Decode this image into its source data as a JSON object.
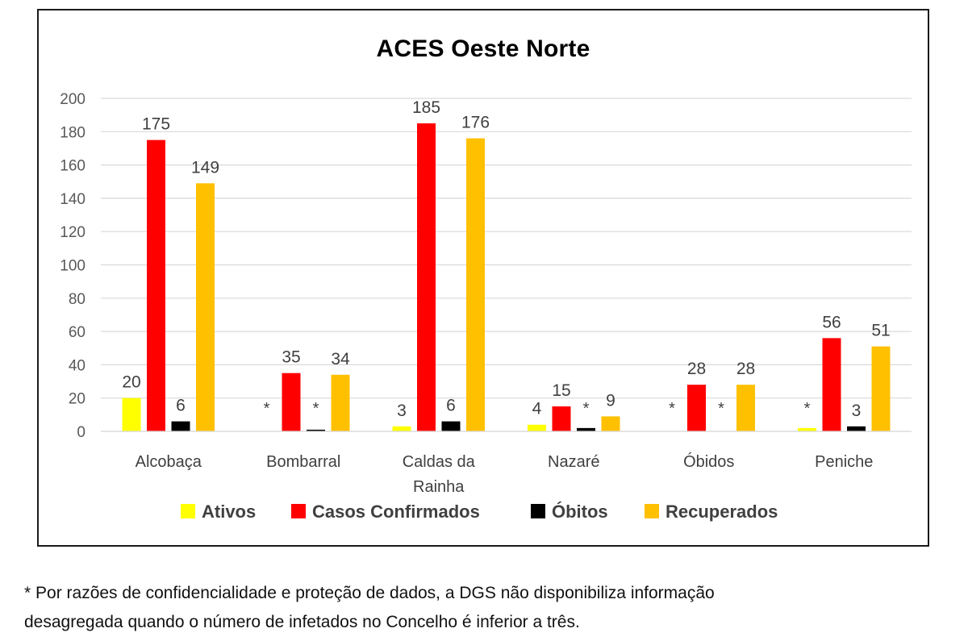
{
  "chart_data": {
    "type": "bar",
    "title": "ACES Oeste Norte",
    "xlabel": "",
    "ylabel": "",
    "ylim": [
      0,
      200
    ],
    "yticks": [
      0,
      20,
      40,
      60,
      80,
      100,
      120,
      140,
      160,
      180,
      200
    ],
    "grid": true,
    "legend_position": "bottom",
    "categories": [
      "Alcobaça",
      "Bombarral",
      "Caldas da Rainha",
      "Nazaré",
      "Óbidos",
      "Peniche"
    ],
    "series": [
      {
        "name": "Ativos",
        "color": "#ffff00",
        "values": [
          20,
          0,
          3,
          4,
          0,
          2
        ],
        "labels": [
          "20",
          "*",
          "3",
          "4",
          "*",
          "*"
        ]
      },
      {
        "name": "Casos Confirmados",
        "color": "#ff0000",
        "values": [
          175,
          35,
          185,
          15,
          28,
          56
        ],
        "labels": [
          "175",
          "35",
          "185",
          "15",
          "28",
          "56"
        ]
      },
      {
        "name": "Óbitos",
        "color": "#000000",
        "values": [
          6,
          1,
          6,
          2,
          0,
          3
        ],
        "labels": [
          "6",
          "*",
          "6",
          "*",
          "*",
          "3"
        ]
      },
      {
        "name": "Recuperados",
        "color": "#ffc000",
        "values": [
          149,
          34,
          176,
          9,
          28,
          51
        ],
        "labels": [
          "149",
          "34",
          "176",
          "9",
          "28",
          "51"
        ]
      }
    ]
  },
  "footnote": {
    "line1": "* Por razões de confidencialidade e proteção de dados, a DGS não disponibiliza informação",
    "line2": "desagregada quando o número de infetados no Concelho é inferior a três."
  }
}
